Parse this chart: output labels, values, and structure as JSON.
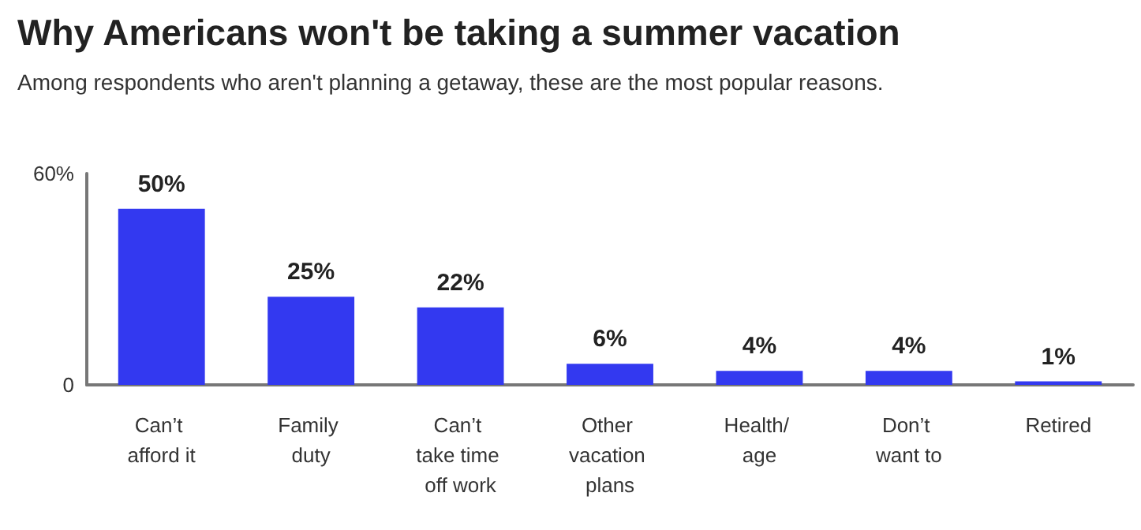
{
  "chart_data": {
    "type": "bar",
    "title": "Why Americans won't be taking a summer vacation",
    "subtitle": "Among respondents who aren't planning a getaway, these are the most popular reasons.",
    "categories": [
      "Can’t afford it",
      "Family duty",
      "Can’t take time off work",
      "Other vacation plans",
      "Health/ age",
      "Don’t want to",
      "Retired"
    ],
    "values": [
      50,
      25,
      22,
      6,
      4,
      4,
      1
    ],
    "value_labels": [
      "50%",
      "25%",
      "22%",
      "6%",
      "4%",
      "4%",
      "1%"
    ],
    "color": "#3339f0",
    "ylim": [
      0,
      60
    ],
    "yticks": [
      0,
      {
        "value": 60,
        "label": "60%"
      }
    ],
    "grid": false
  }
}
